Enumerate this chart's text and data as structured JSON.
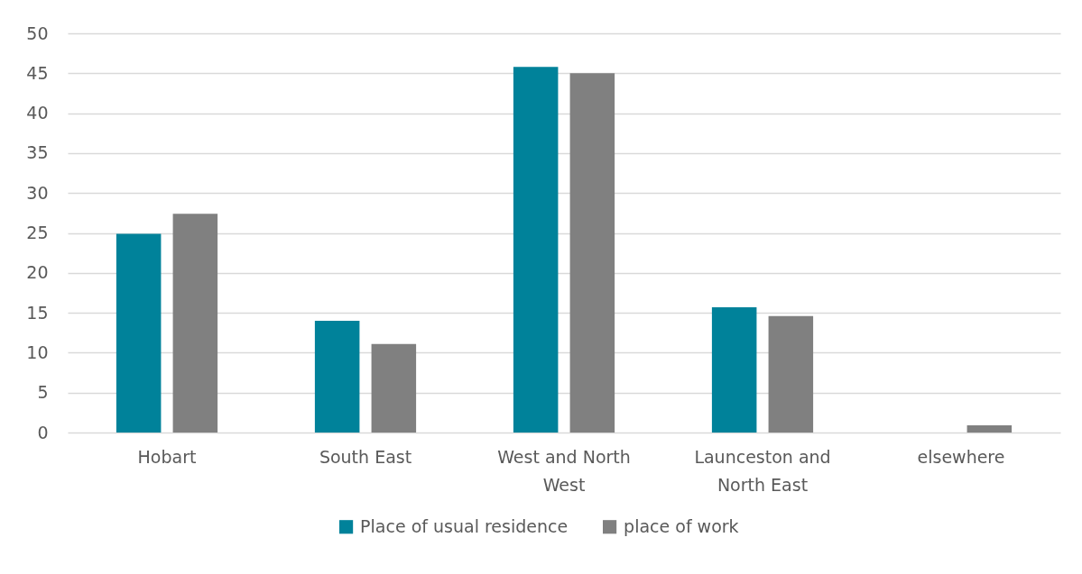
{
  "chart_data": {
    "type": "bar",
    "categories": [
      "Hobart",
      "South East",
      "West and North West",
      "Launceston and North East",
      "elsewhere"
    ],
    "series": [
      {
        "name": "Place of usual residence",
        "color": "#00829a",
        "values": [
          24.9,
          14.0,
          45.8,
          15.7,
          null
        ]
      },
      {
        "name": "place of work",
        "color": "#808080",
        "values": [
          27.4,
          11.1,
          45.0,
          14.6,
          0.9
        ]
      }
    ],
    "ylim": [
      0,
      50
    ],
    "yticks": [
      0,
      5,
      10,
      15,
      20,
      25,
      30,
      35,
      40,
      45,
      50
    ],
    "grid": "y",
    "legend": "bottom"
  }
}
